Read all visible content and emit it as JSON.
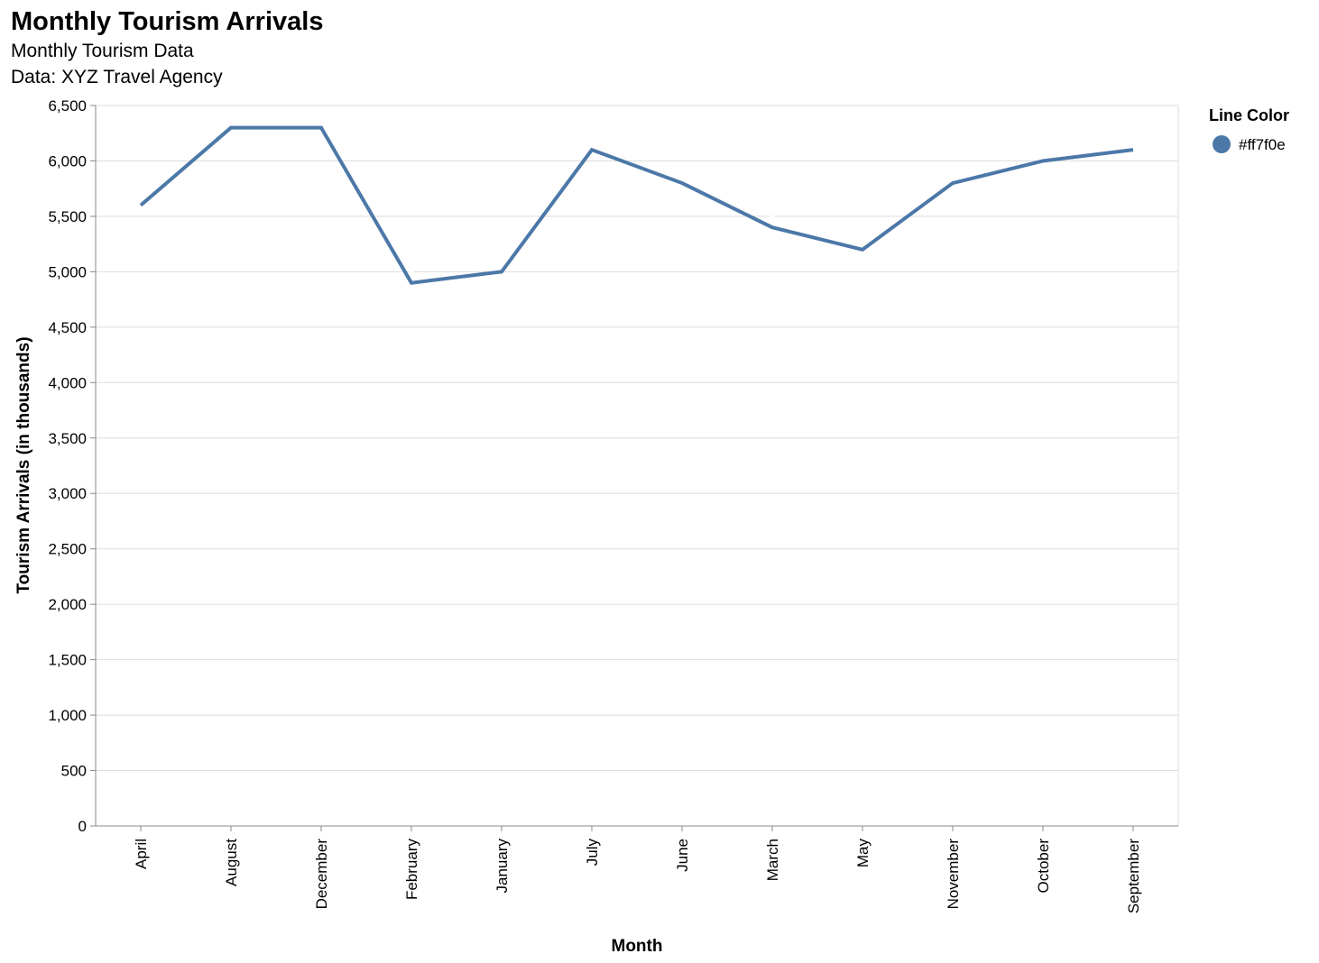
{
  "chart_data": {
    "type": "line",
    "title": "Monthly Tourism Arrivals",
    "subtitle_lines": [
      "Monthly Tourism Data",
      "Data: XYZ Travel Agency"
    ],
    "xlabel": "Month",
    "ylabel": "Tourism Arrivals (in thousands)",
    "categories": [
      "April",
      "August",
      "December",
      "February",
      "January",
      "July",
      "June",
      "March",
      "May",
      "November",
      "October",
      "September"
    ],
    "series": [
      {
        "name": "#ff7f0e",
        "values": [
          5600,
          6300,
          6300,
          4900,
          5000,
          6100,
          5800,
          5400,
          5200,
          5800,
          6000,
          6100
        ]
      }
    ],
    "ylim": [
      0,
      6500
    ],
    "yticks": [
      0,
      500,
      1000,
      1500,
      2000,
      2500,
      3000,
      3500,
      4000,
      4500,
      5000,
      5500,
      6000,
      6500
    ],
    "ytick_labels": [
      "0",
      "500",
      "1,000",
      "1,500",
      "2,000",
      "2,500",
      "3,000",
      "3,500",
      "4,000",
      "4,500",
      "5,000",
      "5,500",
      "6,000",
      "6,500"
    ],
    "grid": true,
    "legend": {
      "title": "Line Color",
      "placement": "top-right",
      "entries": [
        "#ff7f0e"
      ]
    },
    "line_color": "#4c78a8"
  }
}
